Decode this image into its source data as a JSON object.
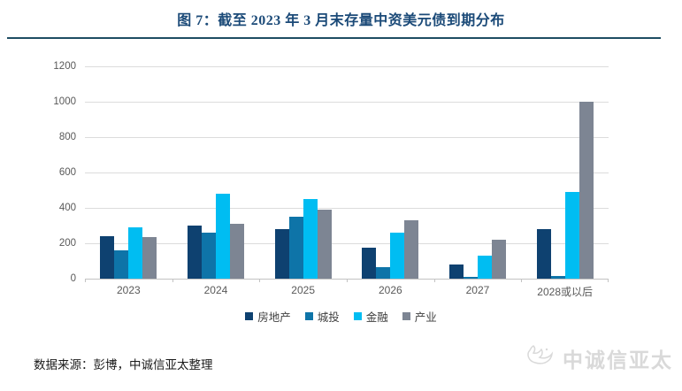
{
  "page": {
    "title": "图 7：截至 2023 年 3 月末存量中资美元债到期分布",
    "source_note": "数据来源：彭博，中诚信亚太整理",
    "watermark_text": "中诚信亚太"
  },
  "colors": {
    "title_text": "#1b4a78",
    "divider": "#1e4d63",
    "gridline": "#dcdcdc",
    "axis_line": "#c3c3c3",
    "tick_label": "#595959",
    "legend_text": "#3f3f3f",
    "source_text": "#1a1a1a",
    "watermark": "#d9d9d9"
  },
  "chart_data": {
    "type": "bar",
    "title": "截至 2023 年 3 月末存量中资美元债到期分布",
    "categories": [
      "2023",
      "2024",
      "2025",
      "2026",
      "2027",
      "2028或以后"
    ],
    "series": [
      {
        "name": "房地产",
        "color": "#0e4170",
        "values": [
          240,
          300,
          280,
          175,
          80,
          280
        ]
      },
      {
        "name": "城投",
        "color": "#0e74a8",
        "values": [
          160,
          260,
          350,
          65,
          10,
          15
        ]
      },
      {
        "name": "金融",
        "color": "#00bdf2",
        "values": [
          290,
          480,
          450,
          260,
          130,
          490
        ]
      },
      {
        "name": "产业",
        "color": "#7d8593",
        "values": [
          235,
          310,
          390,
          330,
          220,
          1000
        ]
      }
    ],
    "xlabel": "",
    "ylabel": "",
    "ylim": [
      0,
      1200
    ],
    "yticks": [
      0,
      200,
      400,
      600,
      800,
      1000,
      1200
    ],
    "grid": true,
    "legend_position": "bottom"
  }
}
